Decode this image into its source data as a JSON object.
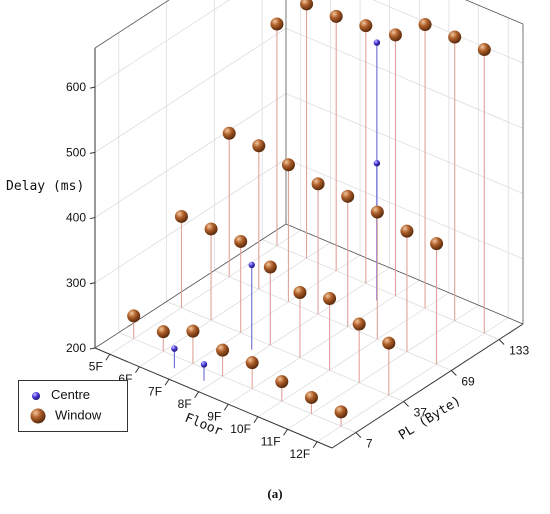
{
  "caption": "(a)",
  "chart_data": {
    "type": "scatter",
    "subtype": "3d-scatter-with-droplines",
    "xlabel": "PL (Byte)",
    "ylabel": "Floor",
    "zlabel": "Delay (ms)",
    "x_categories": [
      "7",
      "37",
      "69",
      "133"
    ],
    "y_categories": [
      "5F",
      "6F",
      "7F",
      "8F",
      "9F",
      "10F",
      "11F",
      "12F"
    ],
    "z_ticks": [
      200,
      300,
      400,
      500,
      600
    ],
    "z_range": [
      200,
      660
    ],
    "grid": true,
    "legend_position": "left-bottom",
    "series": [
      {
        "name": "Centre",
        "color": "#3b2fcf",
        "marker": "small-sphere",
        "points": [
          {
            "x": "7",
            "y": "7F",
            "z": 230
          },
          {
            "x": "7",
            "y": "8F",
            "z": 225
          },
          {
            "x": "37",
            "y": "8F",
            "z": 330
          },
          {
            "x": "133",
            "y": "9F",
            "z": 595
          },
          {
            "x": "133",
            "y": "9F",
            "z": 410
          }
        ]
      },
      {
        "name": "Window",
        "color": "#8c4a1e",
        "marker": "large-sphere",
        "points": [
          {
            "x": "7",
            "y": "5F",
            "z": 235
          },
          {
            "x": "7",
            "y": "6F",
            "z": 230
          },
          {
            "x": "7",
            "y": "7F",
            "z": 250
          },
          {
            "x": "7",
            "y": "8F",
            "z": 240
          },
          {
            "x": "7",
            "y": "9F",
            "z": 240
          },
          {
            "x": "7",
            "y": "10F",
            "z": 230
          },
          {
            "x": "7",
            "y": "11F",
            "z": 225
          },
          {
            "x": "7",
            "y": "12F",
            "z": 222
          },
          {
            "x": "37",
            "y": "5F",
            "z": 340
          },
          {
            "x": "37",
            "y": "6F",
            "z": 340
          },
          {
            "x": "37",
            "y": "7F",
            "z": 340
          },
          {
            "x": "37",
            "y": "8F",
            "z": 320
          },
          {
            "x": "37",
            "y": "9F",
            "z": 300
          },
          {
            "x": "37",
            "y": "10F",
            "z": 310
          },
          {
            "x": "37",
            "y": "11F",
            "z": 290
          },
          {
            "x": "37",
            "y": "12F",
            "z": 280
          },
          {
            "x": "69",
            "y": "5F",
            "z": 420
          },
          {
            "x": "69",
            "y": "6F",
            "z": 420
          },
          {
            "x": "69",
            "y": "7F",
            "z": 410
          },
          {
            "x": "69",
            "y": "8F",
            "z": 400
          },
          {
            "x": "69",
            "y": "9F",
            "z": 400
          },
          {
            "x": "69",
            "y": "10F",
            "z": 395
          },
          {
            "x": "69",
            "y": "11F",
            "z": 385
          },
          {
            "x": "69",
            "y": "12F",
            "z": 385
          },
          {
            "x": "133",
            "y": "5F",
            "z": 540
          },
          {
            "x": "133",
            "y": "6F",
            "z": 590
          },
          {
            "x": "133",
            "y": "7F",
            "z": 590
          },
          {
            "x": "133",
            "y": "8F",
            "z": 595
          },
          {
            "x": "133",
            "y": "9F",
            "z": 600
          },
          {
            "x": "133",
            "y": "10F",
            "z": 635
          },
          {
            "x": "133",
            "y": "11F",
            "z": 635
          },
          {
            "x": "133",
            "y": "12F",
            "z": 635
          }
        ]
      }
    ]
  }
}
